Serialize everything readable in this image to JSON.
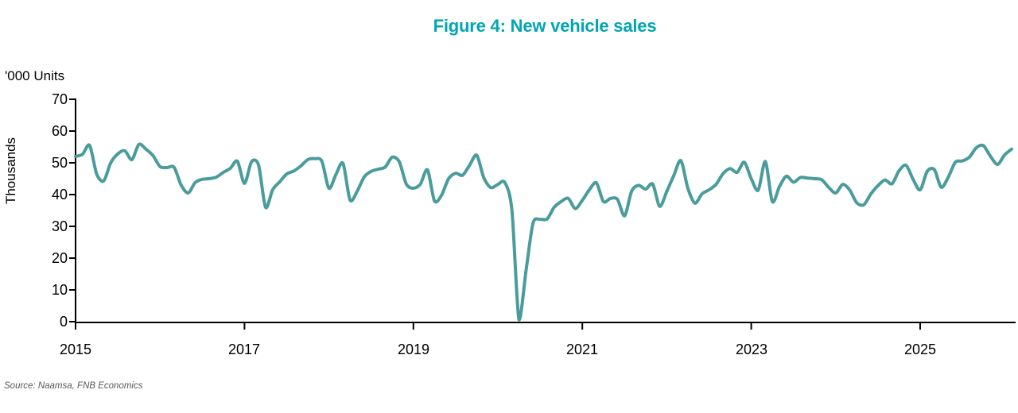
{
  "title": "Figure 4: New vehicle sales",
  "source_note": "Source: Naamsa, FNB Economics",
  "colors": {
    "title_teal": "#00a6b2",
    "line_teal": "#4a9c9c",
    "axis_black": "#000000",
    "source_gray": "#575757"
  },
  "chart_data": {
    "type": "line",
    "title": "Figure 4: New vehicle sales",
    "unit_label": "'000 Units",
    "ylabel": "Thousands",
    "xlabel": "",
    "ylim": [
      0,
      70
    ],
    "y_ticks": [
      0,
      10,
      20,
      30,
      40,
      50,
      60,
      70
    ],
    "x_ticks": [
      2015,
      2017,
      2019,
      2021,
      2023,
      2025
    ],
    "x_range": [
      "2015-01",
      "2026-02"
    ],
    "frequency": "monthly",
    "grid": false,
    "legend_position": "none",
    "series": [
      {
        "name": "New vehicle sales ('000 units)",
        "values": [
          52,
          52.7,
          55.5,
          46.5,
          44.3,
          50,
          52.8,
          53.8,
          51,
          55.8,
          54.3,
          52.3,
          48.8,
          48.5,
          48.6,
          43,
          40.5,
          43.8,
          44.8,
          45,
          45.5,
          47,
          48.3,
          50.5,
          43.5,
          50.3,
          49.3,
          36,
          41.5,
          44,
          46.5,
          47.4,
          49,
          51,
          51.3,
          50.5,
          42,
          46.3,
          49.8,
          38.3,
          41,
          45.5,
          47.3,
          48,
          48.7,
          51.8,
          50.3,
          43.3,
          42,
          43.3,
          47.8,
          38,
          39.8,
          45,
          46.7,
          46.1,
          49.3,
          52.4,
          45.3,
          42.2,
          43.2,
          43.8,
          35,
          0.6,
          16,
          31,
          32.2,
          32.3,
          36,
          37.8,
          38.8,
          35.6,
          38.2,
          41.5,
          43.7,
          37.8,
          38.8,
          38.5,
          33.3,
          41,
          42.9,
          41.7,
          43.3,
          36.3,
          41,
          46,
          50.7,
          42,
          37.3,
          40.2,
          41.5,
          43.2,
          46.6,
          48.2,
          47,
          50.2,
          45,
          41.4,
          50.4,
          37.8,
          42.5,
          45.8,
          43.9,
          45.4,
          45.2,
          45,
          44.7,
          42.3,
          40.5,
          43.2,
          41.4,
          37.4,
          36.8,
          40.2,
          42.8,
          44.6,
          43.4,
          47.5,
          49.2,
          44.8,
          41.5,
          47.3,
          47.9,
          42.3,
          45.5,
          50.2,
          50.6,
          51.8,
          54.8,
          55.4,
          52,
          49.5,
          52.5,
          54.3
        ]
      }
    ]
  }
}
